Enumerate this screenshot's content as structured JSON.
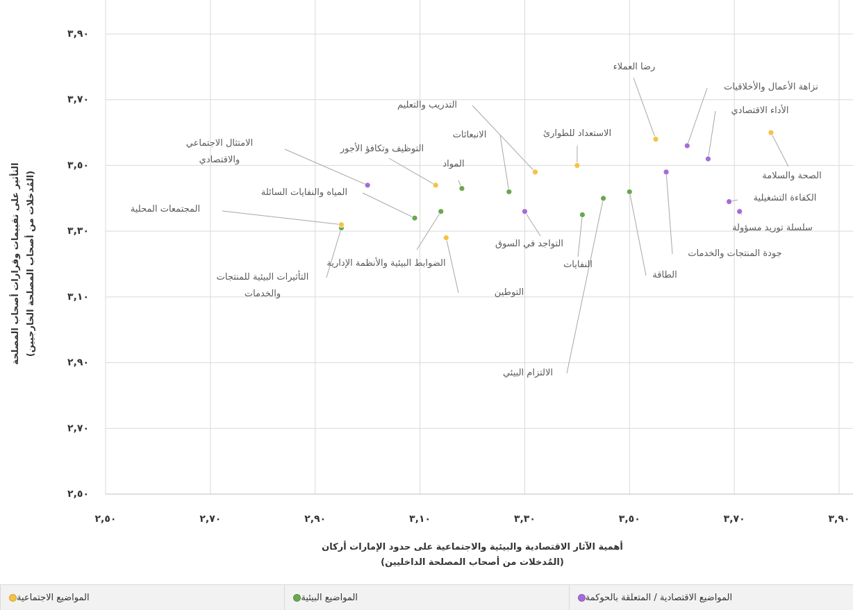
{
  "chart_data": {
    "type": "scatter",
    "x_label": [
      "أهمية الآثار الاقتصادية والبيئية والاجتماعية على حدود الإمارات أركان",
      "(المُدخلات من أصحاب المصلحة الداخليين)"
    ],
    "y_label": [
      "التأثير على تقييمات وقرارات أصحاب المصلحة",
      "(المُدخلات من أصحاب المصلحة الخارجيين)"
    ],
    "xlim": [
      2.5,
      3.9
    ],
    "ylim": [
      2.5,
      3.9
    ],
    "xticks": [
      {
        "value": 2.5,
        "label": "٢,٥٠"
      },
      {
        "value": 2.7,
        "label": "٢,٧٠"
      },
      {
        "value": 2.9,
        "label": "٢,٩٠"
      },
      {
        "value": 3.1,
        "label": "٣,١٠"
      },
      {
        "value": 3.3,
        "label": "٣,٣٠"
      },
      {
        "value": 3.5,
        "label": "٣,٥٠"
      },
      {
        "value": 3.7,
        "label": "٣,٧٠"
      },
      {
        "value": 3.9,
        "label": "٣,٩٠"
      }
    ],
    "yticks": [
      {
        "value": 2.5,
        "label": "٢,٥٠"
      },
      {
        "value": 2.7,
        "label": "٢,٧٠"
      },
      {
        "value": 2.9,
        "label": "٢,٩٠"
      },
      {
        "value": 3.1,
        "label": "٣,١٠"
      },
      {
        "value": 3.3,
        "label": "٣,٣٠"
      },
      {
        "value": 3.5,
        "label": "٣,٥٠"
      },
      {
        "value": 3.7,
        "label": "٣,٧٠"
      },
      {
        "value": 3.9,
        "label": "٣,٩٠"
      }
    ],
    "grid": true,
    "legend": "bottom",
    "series": [
      {
        "name": "المواضيع الاقتصادية / المتعلقة بالحوكمة",
        "color": "#a66bd9",
        "labels": [
          "نزاهة الأعمال والأخلاقيات",
          "الأداء الاقتصادي",
          "جودة المنتجات والخدمات",
          "الكفاءة التشغيلية",
          "سلسلة توريد مسؤولة",
          "التواجد في السوق",
          "الامتثال الاجتماعي والاقتصادي"
        ],
        "x": [
          3.61,
          3.65,
          3.57,
          3.69,
          3.71,
          3.3,
          3.0
        ],
        "y": [
          3.56,
          3.52,
          3.48,
          3.39,
          3.36,
          3.36,
          3.44
        ]
      },
      {
        "name": "المواضيع البيئية",
        "color": "#6aa84f",
        "labels": [
          "المواد",
          "الانبعاثات",
          "المياه والنفايات السائلة",
          "الضوابط البيئية والأنظمة الإدارية",
          "التأثيرات البيئية للمنتجات والخدمات",
          "النفايات",
          "الالتزام البيئي",
          "الطاقة"
        ],
        "x": [
          3.18,
          3.27,
          3.09,
          3.14,
          2.95,
          3.41,
          3.45,
          3.5
        ],
        "y": [
          3.43,
          3.42,
          3.34,
          3.36,
          3.31,
          3.35,
          3.4,
          3.42
        ]
      },
      {
        "name": "المواضيع الاجتماعية",
        "color": "#f5c242",
        "labels": [
          "رضا العملاء",
          "الصحة والسلامة",
          "الاستعداد للطوارئ",
          "التدريب والتعليم",
          "التوظيف وتكافؤ الأجور",
          "التوطين",
          "المجتمعات المحلية"
        ],
        "x": [
          3.55,
          3.77,
          3.4,
          3.32,
          3.13,
          3.15,
          2.95
        ],
        "y": [
          3.58,
          3.6,
          3.5,
          3.48,
          3.44,
          3.28,
          3.32
        ]
      }
    ]
  }
}
